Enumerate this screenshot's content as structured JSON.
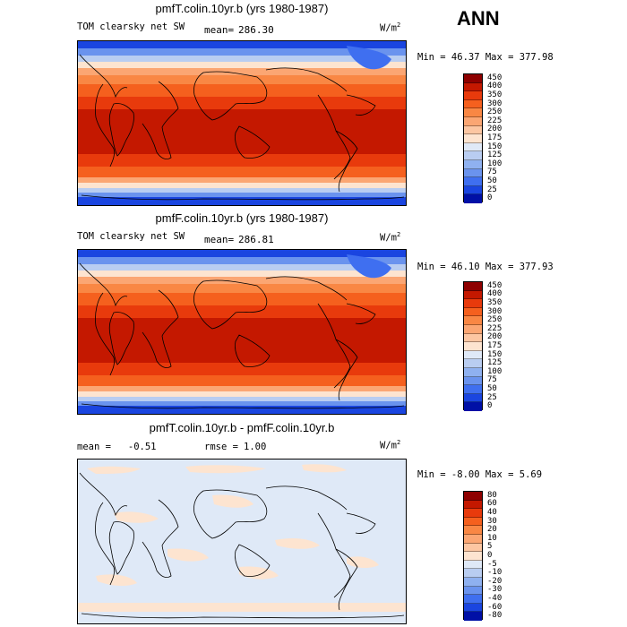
{
  "season": "ANN",
  "panels": [
    {
      "title": "pmfT.colin.10yr.b (yrs 1980-1987)",
      "left_label": "TOM clearsky net SW",
      "stat_label": "mean=",
      "stat_value": "286.30",
      "units": "W/m",
      "units_sup": "2",
      "minmax": "Min =  46.37 Max = 377.98",
      "levels": [
        "450",
        "400",
        "350",
        "300",
        "250",
        "225",
        "200",
        "175",
        "150",
        "125",
        "100",
        "75",
        "50",
        "25",
        "0"
      ],
      "colors": [
        "#8e0000",
        "#c41800",
        "#e83a0c",
        "#f5601e",
        "#f98744",
        "#fba673",
        "#fcc6a2",
        "#fde4d0",
        "#dfe9f7",
        "#b9cdf1",
        "#8fb1f0",
        "#6a93ee",
        "#3f6ff0",
        "#1a45e0",
        "#0010a6"
      ]
    },
    {
      "title": "pmfF.colin.10yr.b (yrs 1980-1987)",
      "left_label": "TOM clearsky net SW",
      "stat_label": "mean=",
      "stat_value": "286.81",
      "units": "W/m",
      "units_sup": "2",
      "minmax": "Min =  46.10 Max = 377.93",
      "levels": [
        "450",
        "400",
        "350",
        "300",
        "250",
        "225",
        "200",
        "175",
        "150",
        "125",
        "100",
        "75",
        "50",
        "25",
        "0"
      ],
      "colors": [
        "#8e0000",
        "#c41800",
        "#e83a0c",
        "#f5601e",
        "#f98744",
        "#fba673",
        "#fcc6a2",
        "#fde4d0",
        "#dfe9f7",
        "#b9cdf1",
        "#8fb1f0",
        "#6a93ee",
        "#3f6ff0",
        "#1a45e0",
        "#0010a6"
      ]
    },
    {
      "title": "pmfT.colin.10yr.b - pmfF.colin.10yr.b",
      "left_label": "mean =   -0.51",
      "stat_label": "rmse =",
      "stat_value": "1.00",
      "units": "W/m",
      "units_sup": "2",
      "minmax": "Min =  -8.00 Max =   5.69",
      "levels": [
        "80",
        "60",
        "40",
        "30",
        "20",
        "10",
        "5",
        "0",
        "-5",
        "-10",
        "-20",
        "-30",
        "-40",
        "-60",
        "-80"
      ],
      "colors": [
        "#8e0000",
        "#c41800",
        "#e83a0c",
        "#f5601e",
        "#f98744",
        "#fba673",
        "#fcc6a2",
        "#fde4d0",
        "#dfe9f7",
        "#b9cdf1",
        "#8fb1f0",
        "#6a93ee",
        "#3f6ff0",
        "#1a45e0",
        "#0010a6"
      ]
    }
  ]
}
